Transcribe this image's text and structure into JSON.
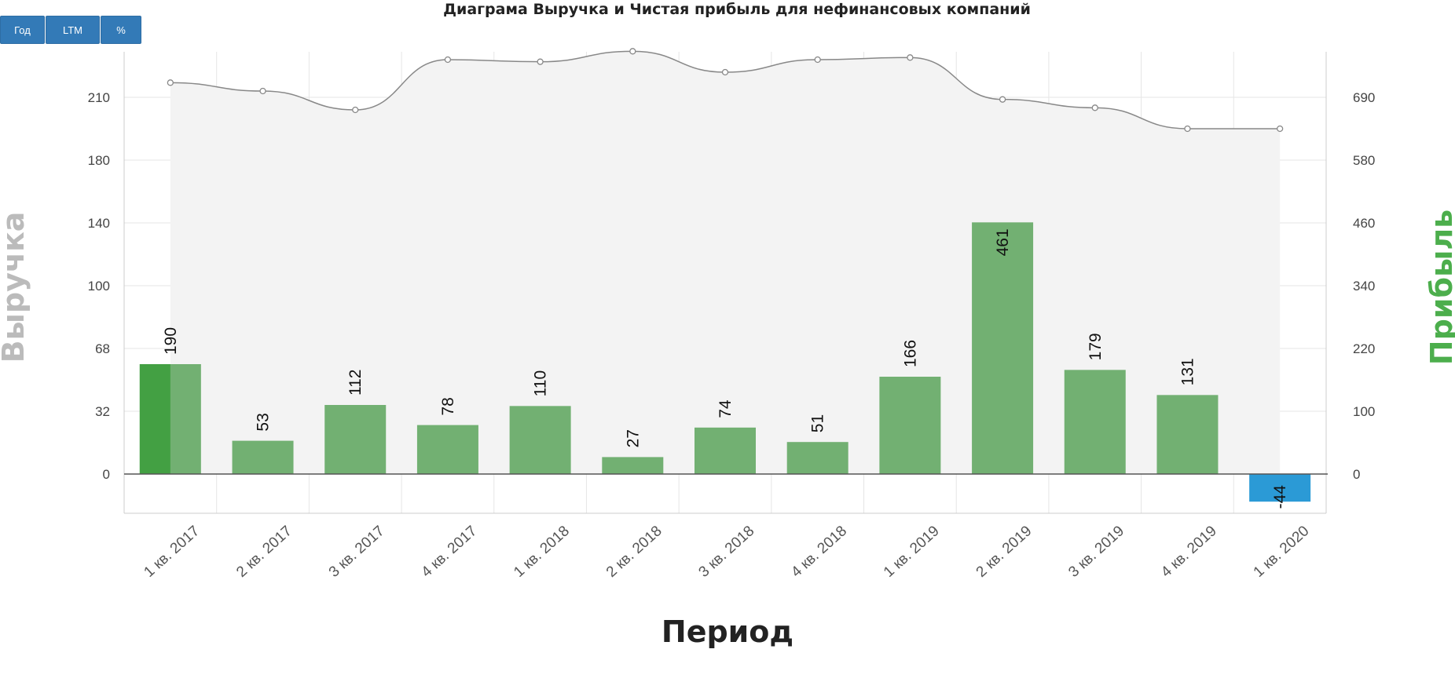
{
  "toolbar": {
    "buttons": [
      "Год",
      "LTM",
      "%"
    ]
  },
  "chart_data": {
    "type": "bar",
    "title": "Диаграма Выручка и Чистая прибыль для нефинансовых компаний",
    "xlabel": "Период",
    "ylabel_left": "Выручка",
    "ylabel_right": "Прибыль",
    "categories": [
      "1 кв. 2017",
      "2 кв. 2017",
      "3 кв. 2017",
      "4 кв. 2017",
      "1 кв. 2018",
      "2 кв. 2018",
      "3 кв. 2018",
      "4 кв. 2018",
      "1 кв. 2019",
      "2 кв. 2019",
      "3 кв. 2019",
      "4 кв. 2019",
      "1 кв. 2020"
    ],
    "left_axis_ticks": [
      "210",
      "180",
      "140",
      "100",
      "68",
      "32",
      "0"
    ],
    "right_axis_ticks": [
      "690",
      "580",
      "460",
      "340",
      "220",
      "100",
      "0"
    ],
    "series": [
      {
        "name": "Прибыль",
        "kind": "bar",
        "axis": "right",
        "values": [
          190,
          53,
          112,
          78,
          110,
          27,
          74,
          51,
          166,
          461,
          179,
          131,
          -44
        ],
        "labels": [
          "190",
          "53",
          "112",
          "78",
          "110",
          "27",
          "74",
          "51",
          "166",
          "461",
          "179",
          "131",
          "-44"
        ]
      },
      {
        "name": "Выручка",
        "kind": "area-line",
        "axis": "left",
        "values": [
          217,
          213,
          204,
          228,
          227,
          232,
          222,
          228,
          229,
          209,
          205,
          195,
          195
        ]
      }
    ],
    "colors": {
      "bar_positive": "#72b072",
      "bar_highlight": "#43a043",
      "bar_negative": "#2b9ad6",
      "area_fill": "#f3f3f3",
      "line": "#888888",
      "grid": "#e6e6e6",
      "zero_line": "#555555",
      "left_label": "#bbbbbb",
      "right_label": "#4cae4c"
    },
    "grid": true
  }
}
